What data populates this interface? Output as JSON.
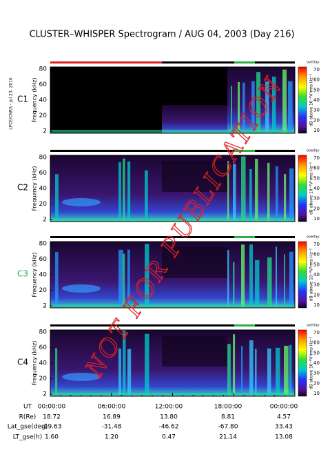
{
  "title": "CLUSTER–WHISPER Spectrogram / AUG 04, 2003 (Day 216)",
  "side_label": "LPCE/CNRS - Jul 23, 2010",
  "watermark": "NOT FOR PUBLICATION",
  "panels": [
    {
      "name": "C1",
      "y_label": "Frequency (kHz)",
      "y_ticks": [
        "80",
        "60",
        "40",
        "20",
        "2"
      ],
      "corner_label": "overlay",
      "colorbar_label": "dB above 10⁻⁸V²rms Hz⁻¹",
      "colorbar_ticks": [
        "70",
        "60",
        "50",
        "40",
        "30",
        "20",
        "10"
      ]
    },
    {
      "name": "C2",
      "y_label": "Frequency (kHz)",
      "y_ticks": [
        "80",
        "60",
        "40",
        "20",
        "2"
      ],
      "corner_label": "overlay",
      "colorbar_label": "dB above 10⁻⁸V²rms Hz⁻¹",
      "colorbar_ticks": [
        "70",
        "60",
        "50",
        "40",
        "30",
        "20",
        "10"
      ]
    },
    {
      "name": "C3",
      "y_label": "Frequency (kHz)",
      "y_ticks": [
        "80",
        "60",
        "40",
        "20",
        "2"
      ],
      "corner_label": "overlay",
      "colorbar_label": "dB above 10⁻⁸V²rms Hz⁻¹",
      "colorbar_ticks": [
        "70",
        "60",
        "50",
        "40",
        "30",
        "20",
        "10"
      ]
    },
    {
      "name": "C4",
      "y_label": "Frequency (kHz)",
      "y_ticks": [
        "80",
        "60",
        "40",
        "20",
        "2"
      ],
      "corner_label": "overlay",
      "colorbar_label": "dB above 10⁻⁸V²rms Hz⁻¹",
      "colorbar_ticks": [
        "70",
        "60",
        "50",
        "40",
        "30",
        "20",
        "10"
      ]
    }
  ],
  "table": {
    "rows": [
      [
        "UT",
        "00:00:00",
        "06:00:00",
        "12:00:00",
        "18:00:00",
        "00:00:00"
      ],
      [
        "R(Re)",
        "18.72",
        "16.89",
        "13.80",
        "8.81",
        "4.57"
      ],
      [
        "Lat_gse(deg)",
        "-19.63",
        "-31.48",
        "-46.62",
        "-67.80",
        "33.43"
      ],
      [
        "LT_gse(h)",
        "1.60",
        "1.20",
        "0.47",
        "21.14",
        "13.08"
      ]
    ]
  }
}
